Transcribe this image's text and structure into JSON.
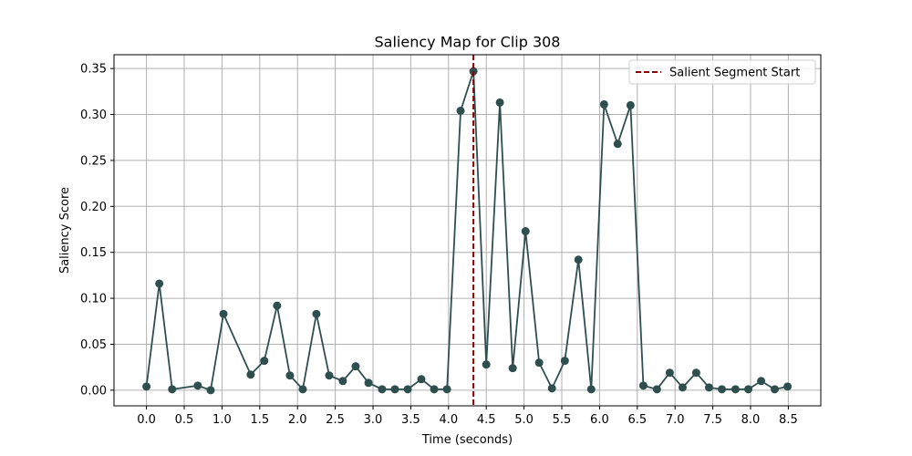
{
  "chart_data": {
    "type": "line",
    "title": "Saliency Map for Clip 308",
    "xlabel": "Time (seconds)",
    "ylabel": "Saliency Score",
    "xlim": [
      -0.43,
      8.93
    ],
    "ylim": [
      -0.017,
      0.365
    ],
    "grid": true,
    "legend_position": "top-right",
    "x_ticks": [
      0.0,
      0.5,
      1.0,
      1.5,
      2.0,
      2.5,
      3.0,
      3.5,
      4.0,
      4.5,
      5.0,
      5.5,
      6.0,
      6.5,
      7.0,
      7.5,
      8.0,
      8.5
    ],
    "x_tick_labels": [
      "0.0",
      "0.5",
      "1.0",
      "1.5",
      "2.0",
      "2.5",
      "3.0",
      "3.5",
      "4.0",
      "4.5",
      "5.0",
      "5.5",
      "6.0",
      "6.5",
      "7.0",
      "7.5",
      "8.0",
      "8.5"
    ],
    "y_ticks": [
      0.0,
      0.05,
      0.1,
      0.15,
      0.2,
      0.25,
      0.3,
      0.35
    ],
    "y_tick_labels": [
      "0.00",
      "0.05",
      "0.10",
      "0.15",
      "0.20",
      "0.25",
      "0.30",
      "0.35"
    ],
    "series": [
      {
        "color": "#2f4f4f",
        "x": [
          0.0,
          0.17,
          0.34,
          0.68,
          0.85,
          1.02,
          1.38,
          1.56,
          1.73,
          1.9,
          2.07,
          2.25,
          2.42,
          2.6,
          2.77,
          2.94,
          3.12,
          3.29,
          3.46,
          3.64,
          3.81,
          3.98,
          4.16,
          4.33,
          4.5,
          4.68,
          4.85,
          5.02,
          5.2,
          5.37,
          5.54,
          5.72,
          5.89,
          6.06,
          6.24,
          6.41,
          6.58,
          6.76,
          6.93,
          7.1,
          7.28,
          7.45,
          7.62,
          7.8,
          7.97,
          8.14,
          8.32,
          8.49
        ],
        "y": [
          0.004,
          0.116,
          0.001,
          0.005,
          0.0,
          0.083,
          0.017,
          0.032,
          0.092,
          0.016,
          0.001,
          0.083,
          0.016,
          0.01,
          0.026,
          0.008,
          0.001,
          0.001,
          0.001,
          0.012,
          0.001,
          0.001,
          0.304,
          0.347,
          0.028,
          0.313,
          0.024,
          0.173,
          0.03,
          0.002,
          0.032,
          0.142,
          0.001,
          0.311,
          0.268,
          0.31,
          0.005,
          0.001,
          0.019,
          0.003,
          0.019,
          0.003,
          0.001,
          0.001,
          0.001,
          0.01,
          0.001,
          0.004
        ]
      }
    ],
    "vline": {
      "x": 4.33,
      "label": "Salient Segment Start",
      "color": "#8b0000",
      "style": "dashed"
    }
  }
}
